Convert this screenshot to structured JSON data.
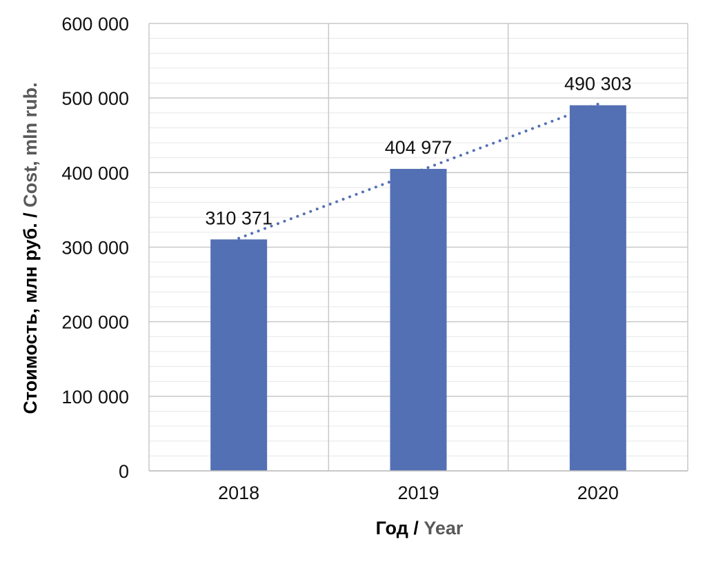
{
  "chart_data": {
    "type": "bar",
    "categories": [
      "2018",
      "2019",
      "2020"
    ],
    "series": [
      {
        "values": [
          310371,
          404977,
          490303
        ],
        "data_labels": [
          "310 371",
          "404 977",
          "490 303"
        ],
        "color": "#5470b4"
      }
    ],
    "trendline": {
      "type": "linear",
      "style": "dotted",
      "color": "#5470b4"
    },
    "xlabel": {
      "ru": "Год / ",
      "en": "Year"
    },
    "ylabel": {
      "ru": "Стоимость, млн руб. / ",
      "en": "Cost, mln rub."
    },
    "ylim": [
      0,
      600000
    ],
    "y_ticks": [
      0,
      100000,
      200000,
      300000,
      400000,
      500000,
      600000
    ],
    "y_tick_labels": [
      "0",
      "100 000",
      "200 000",
      "300 000",
      "400 000",
      "500 000",
      "600 000"
    ],
    "grid": {
      "major": true,
      "minor": true,
      "vertical": true
    },
    "colors": {
      "bar": "#5470b4",
      "major_grid": "#c8c8c8",
      "minor_grid": "#e6e6e6",
      "title_en": "#595959"
    }
  }
}
